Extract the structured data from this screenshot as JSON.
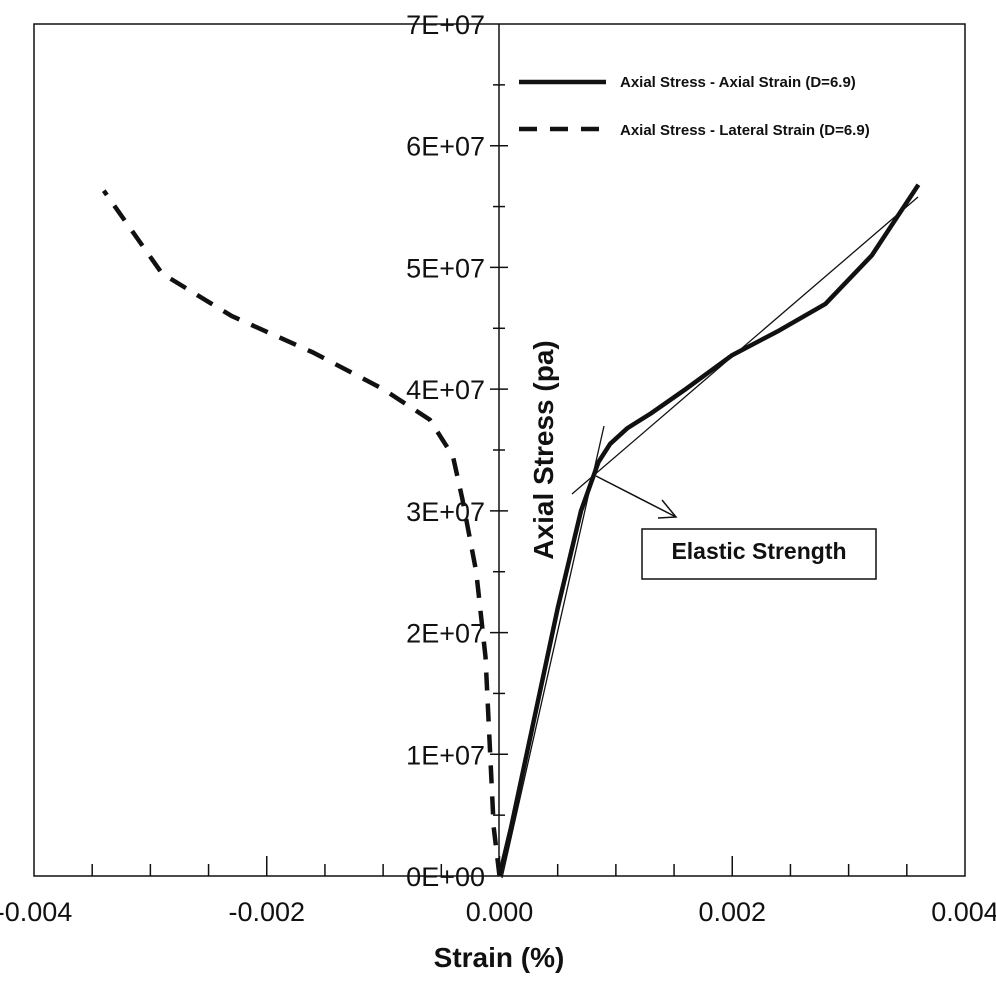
{
  "chart_data": {
    "type": "line",
    "title": "",
    "xlabel": "Strain (%)",
    "ylabel": "Axial Stress (pa)",
    "xlim": [
      -0.004,
      0.004
    ],
    "ylim": [
      0,
      70000000
    ],
    "x_ticks": [
      "-0.004",
      "-0.002",
      "0.000",
      "0.002",
      "0.004"
    ],
    "y_ticks": [
      "0E+00",
      "1E+07",
      "2E+07",
      "3E+07",
      "4E+07",
      "5E+07",
      "6E+07",
      "7E+07"
    ],
    "grid": false,
    "legend_position": "top-right",
    "series": [
      {
        "name": "Axial Stress - Axial Strain (D=6.9)",
        "style": "solid",
        "color": "#111111",
        "points": [
          [
            0.0,
            0
          ],
          [
            0.0001,
            4000000
          ],
          [
            0.0003,
            13000000
          ],
          [
            0.0005,
            22000000
          ],
          [
            0.0007,
            30000000
          ],
          [
            0.00085,
            34000000
          ],
          [
            0.00095,
            35500000
          ],
          [
            0.0011,
            36800000
          ],
          [
            0.0013,
            38000000
          ],
          [
            0.0016,
            40000000
          ],
          [
            0.002,
            42800000
          ],
          [
            0.0024,
            44800000
          ],
          [
            0.0028,
            47000000
          ],
          [
            0.0032,
            51000000
          ],
          [
            0.0036,
            56800000
          ]
        ]
      },
      {
        "name": "Axial Stress - Lateral Strain (D=6.9)",
        "style": "dashed",
        "color": "#111111",
        "points": [
          [
            0.0,
            0
          ],
          [
            -5e-05,
            4000000
          ],
          [
            -8e-05,
            10000000
          ],
          [
            -0.00012,
            18000000
          ],
          [
            -0.0002,
            25000000
          ],
          [
            -0.00032,
            31000000
          ],
          [
            -0.0004,
            34500000
          ],
          [
            -0.0006,
            37500000
          ],
          [
            -0.001,
            40000000
          ],
          [
            -0.0016,
            43000000
          ],
          [
            -0.0023,
            46000000
          ],
          [
            -0.0029,
            49500000
          ],
          [
            -0.0034,
            56300000
          ]
        ]
      }
    ],
    "annotations": [
      {
        "text": "Elastic Strength",
        "point": [
          0.00083,
          32900000
        ]
      }
    ]
  }
}
